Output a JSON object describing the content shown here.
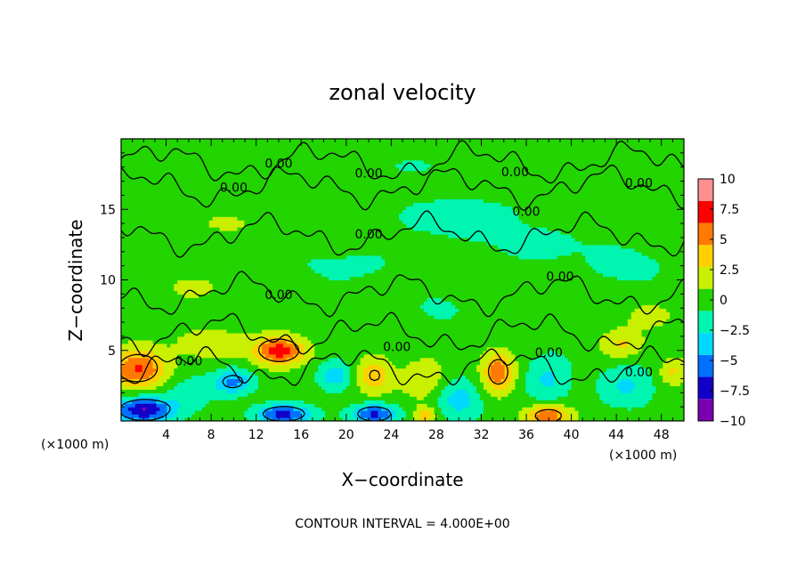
{
  "chart_data": {
    "type": "heatmap",
    "title": "zonal velocity",
    "xlabel": "X−coordinate",
    "ylabel": "Z−coordinate",
    "x_unit_left": "(×1000 m)",
    "x_unit_right": "(×1000 m)",
    "xlim": [
      0,
      50
    ],
    "ylim": [
      0,
      20
    ],
    "x_ticks": [
      4,
      8,
      12,
      16,
      20,
      24,
      28,
      32,
      36,
      40,
      44,
      48
    ],
    "x_tick_labels": [
      "4",
      "8",
      "12",
      "16",
      "20",
      "24",
      "28",
      "32",
      "36",
      "40",
      "44",
      "48"
    ],
    "y_ticks": [
      5,
      10,
      15
    ],
    "y_tick_labels": [
      "5",
      "10",
      "15"
    ],
    "colorbar": {
      "min": -10,
      "max": 10,
      "ticks": [
        10,
        7.5,
        5,
        2.5,
        0,
        -2.5,
        -5,
        -7.5,
        -10
      ],
      "tick_labels": [
        "10",
        "7.5",
        "5",
        "2.5",
        "0",
        "−2.5",
        "−5",
        "−7.5",
        "−10"
      ],
      "colors": [
        "#7a00b0",
        "#1000c8",
        "#0070ff",
        "#00d8ff",
        "#00f5b0",
        "#22d400",
        "#c8f000",
        "#ffd000",
        "#ff7a00",
        "#ff0000",
        "#ff9090"
      ]
    },
    "contour_labels": [
      {
        "text": "0.00",
        "x": 22,
        "y": 17.5
      },
      {
        "text": "0.00",
        "x": 14,
        "y": 18.2
      },
      {
        "text": "0.00",
        "x": 35,
        "y": 17.6
      },
      {
        "text": "0.00",
        "x": 46,
        "y": 16.8
      },
      {
        "text": "0.00",
        "x": 10,
        "y": 16.5
      },
      {
        "text": "0.00",
        "x": 36,
        "y": 14.8
      },
      {
        "text": "0.00",
        "x": 22,
        "y": 13.2
      },
      {
        "text": "0.00",
        "x": 39,
        "y": 10.2
      },
      {
        "text": "0.00",
        "x": 14,
        "y": 8.9
      },
      {
        "text": "0.00",
        "x": 24.5,
        "y": 5.2
      },
      {
        "text": "0.00",
        "x": 38,
        "y": 4.8
      },
      {
        "text": "0.00",
        "x": 6,
        "y": 4.2
      },
      {
        "text": "0.00",
        "x": 46,
        "y": 3.4
      }
    ],
    "blobs": [
      {
        "x": 1.5,
        "y": 3.7,
        "rx": 2.5,
        "ry": 1.4,
        "v": 6.5
      },
      {
        "x": 14,
        "y": 5.0,
        "rx": 2.2,
        "ry": 1.0,
        "v": 7.5
      },
      {
        "x": 33.5,
        "y": 3.5,
        "rx": 1.4,
        "ry": 1.4,
        "v": 6
      },
      {
        "x": 22.5,
        "y": 3.2,
        "rx": 1.5,
        "ry": 1.2,
        "v": 4.5
      },
      {
        "x": 38,
        "y": 0.4,
        "rx": 2.0,
        "ry": 0.8,
        "v": 6
      },
      {
        "x": 27,
        "y": 0.4,
        "rx": 1.0,
        "ry": 0.6,
        "v": 4
      },
      {
        "x": 44.5,
        "y": 5.5,
        "rx": 1.8,
        "ry": 1.0,
        "v": 3
      },
      {
        "x": 49,
        "y": 3.5,
        "rx": 1.2,
        "ry": 1.0,
        "v": 3
      },
      {
        "x": 2,
        "y": 0.8,
        "rx": 2.5,
        "ry": 0.9,
        "v": -8.5
      },
      {
        "x": 14.5,
        "y": 0.5,
        "rx": 2.5,
        "ry": 0.7,
        "v": -7
      },
      {
        "x": 22.5,
        "y": 0.5,
        "rx": 2.0,
        "ry": 0.7,
        "v": -7
      },
      {
        "x": 10,
        "y": 2.8,
        "rx": 1.8,
        "ry": 0.9,
        "v": -5
      },
      {
        "x": 19,
        "y": 3.2,
        "rx": 1.5,
        "ry": 1.0,
        "v": -4
      },
      {
        "x": 30,
        "y": 1.5,
        "rx": 2.0,
        "ry": 1.5,
        "v": -3.5
      },
      {
        "x": 38,
        "y": 3.0,
        "rx": 2.0,
        "ry": 1.8,
        "v": -3
      },
      {
        "x": 45,
        "y": 2.5,
        "rx": 2.5,
        "ry": 1.5,
        "v": -3
      },
      {
        "x": 6,
        "y": 2.0,
        "rx": 2.0,
        "ry": 1.2,
        "v": -2.5
      },
      {
        "x": 27,
        "y": 3.0,
        "rx": 2.0,
        "ry": 1.5,
        "v": 2.5
      },
      {
        "x": 8,
        "y": 5.5,
        "rx": 3.0,
        "ry": 1.0,
        "v": 2.5
      },
      {
        "x": 30,
        "y": 14.5,
        "rx": 6.0,
        "ry": 1.5,
        "v": -1.8
      },
      {
        "x": 37,
        "y": 12.5,
        "rx": 5.0,
        "ry": 1.3,
        "v": -1.5
      },
      {
        "x": 20,
        "y": 11,
        "rx": 6.0,
        "ry": 1.5,
        "v": -1.2
      },
      {
        "x": 45,
        "y": 11,
        "rx": 4.0,
        "ry": 1.5,
        "v": -1.5
      },
      {
        "x": 10,
        "y": 14,
        "rx": 5.0,
        "ry": 1.2,
        "v": 1.0
      },
      {
        "x": 26,
        "y": 18,
        "rx": 5.0,
        "ry": 1.2,
        "v": -1.0
      },
      {
        "x": 28,
        "y": 8,
        "rx": 3.0,
        "ry": 1.2,
        "v": -1.2
      },
      {
        "x": 6,
        "y": 9.5,
        "rx": 3.0,
        "ry": 1.2,
        "v": 1.3
      },
      {
        "x": 47,
        "y": 7.5,
        "rx": 2.5,
        "ry": 1.0,
        "v": 1.5
      }
    ],
    "contour_interval_label": "CONTOUR INTERVAL = 4.000E+00"
  }
}
